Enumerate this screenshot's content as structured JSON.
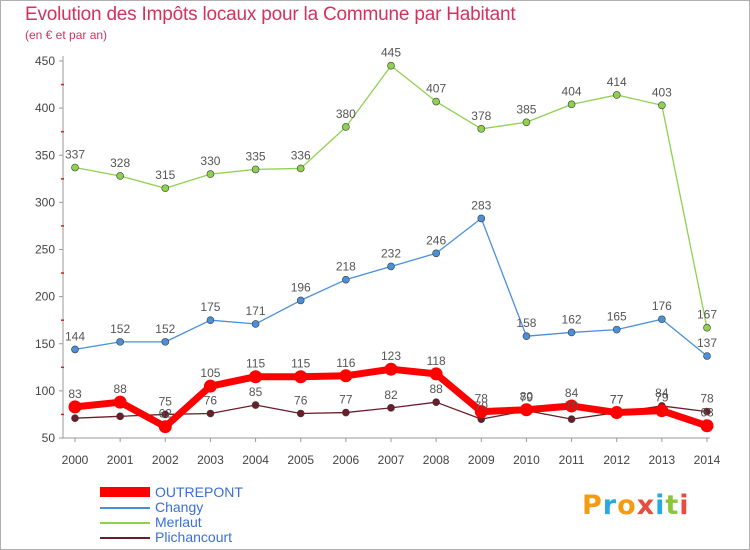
{
  "header": {
    "title": "Evolution des Impôts locaux pour la Commune par Habitant",
    "subtitle": "(en € et par an)"
  },
  "brand": {
    "text": "Proxiti",
    "colors": [
      "#f39c12",
      "#27a9e1",
      "#f39c12",
      "#e74c3c",
      "#27a9e1",
      "#8cc63f",
      "#e74c3c"
    ]
  },
  "chart_data": {
    "type": "line",
    "title": "Evolution des Impôts locaux pour la Commune par Habitant",
    "subtitle": "(en € et par an)",
    "x": [
      "2000",
      "2001",
      "2002",
      "2003",
      "2004",
      "2005",
      "2006",
      "2007",
      "2008",
      "2009",
      "2010",
      "2011",
      "2012",
      "2013",
      "2014"
    ],
    "ylim": [
      50,
      450
    ],
    "yticks": [
      50,
      100,
      150,
      200,
      250,
      300,
      350,
      400,
      450
    ],
    "grid": false,
    "legend_position": "bottom-left",
    "series": [
      {
        "name": "OUTREPONT",
        "color": "#ff0000",
        "values": [
          83,
          88,
          62,
          105,
          115,
          115,
          116,
          123,
          118,
          78,
          80,
          84,
          77,
          79,
          63
        ],
        "labels": [
          "83",
          "88",
          "62",
          "105",
          "115",
          "115",
          "116",
          "123",
          "118",
          "78",
          "80",
          "84",
          "77",
          "79",
          "63"
        ]
      },
      {
        "name": "Changy",
        "color": "#4a90d9",
        "values": [
          144,
          152,
          152,
          175,
          171,
          196,
          218,
          232,
          246,
          283,
          158,
          162,
          165,
          176,
          137
        ],
        "labels": [
          "144",
          "152",
          "152",
          "175",
          "171",
          "196",
          "218",
          "232",
          "246",
          "283",
          "158",
          "162",
          "165",
          "176",
          "137"
        ]
      },
      {
        "name": "Merlaut",
        "color": "#8fd14f",
        "values": [
          337,
          328,
          315,
          330,
          335,
          336,
          380,
          445,
          407,
          378,
          385,
          404,
          414,
          403,
          167
        ],
        "labels": [
          "337",
          "328",
          "315",
          "330",
          "335",
          "336",
          "380",
          "445",
          "407",
          "378",
          "385",
          "404",
          "414",
          "403",
          "167"
        ]
      },
      {
        "name": "Plichancourt",
        "color": "#6b1e2a",
        "values": [
          71,
          73,
          75,
          76,
          85,
          76,
          77,
          82,
          88,
          70,
          79,
          70,
          77,
          84,
          78
        ],
        "labels": [
          "",
          "",
          "75",
          "76",
          "85",
          "76",
          "77",
          "82",
          "88",
          "70",
          "79",
          "70",
          "77",
          "84",
          "78"
        ]
      }
    ]
  }
}
